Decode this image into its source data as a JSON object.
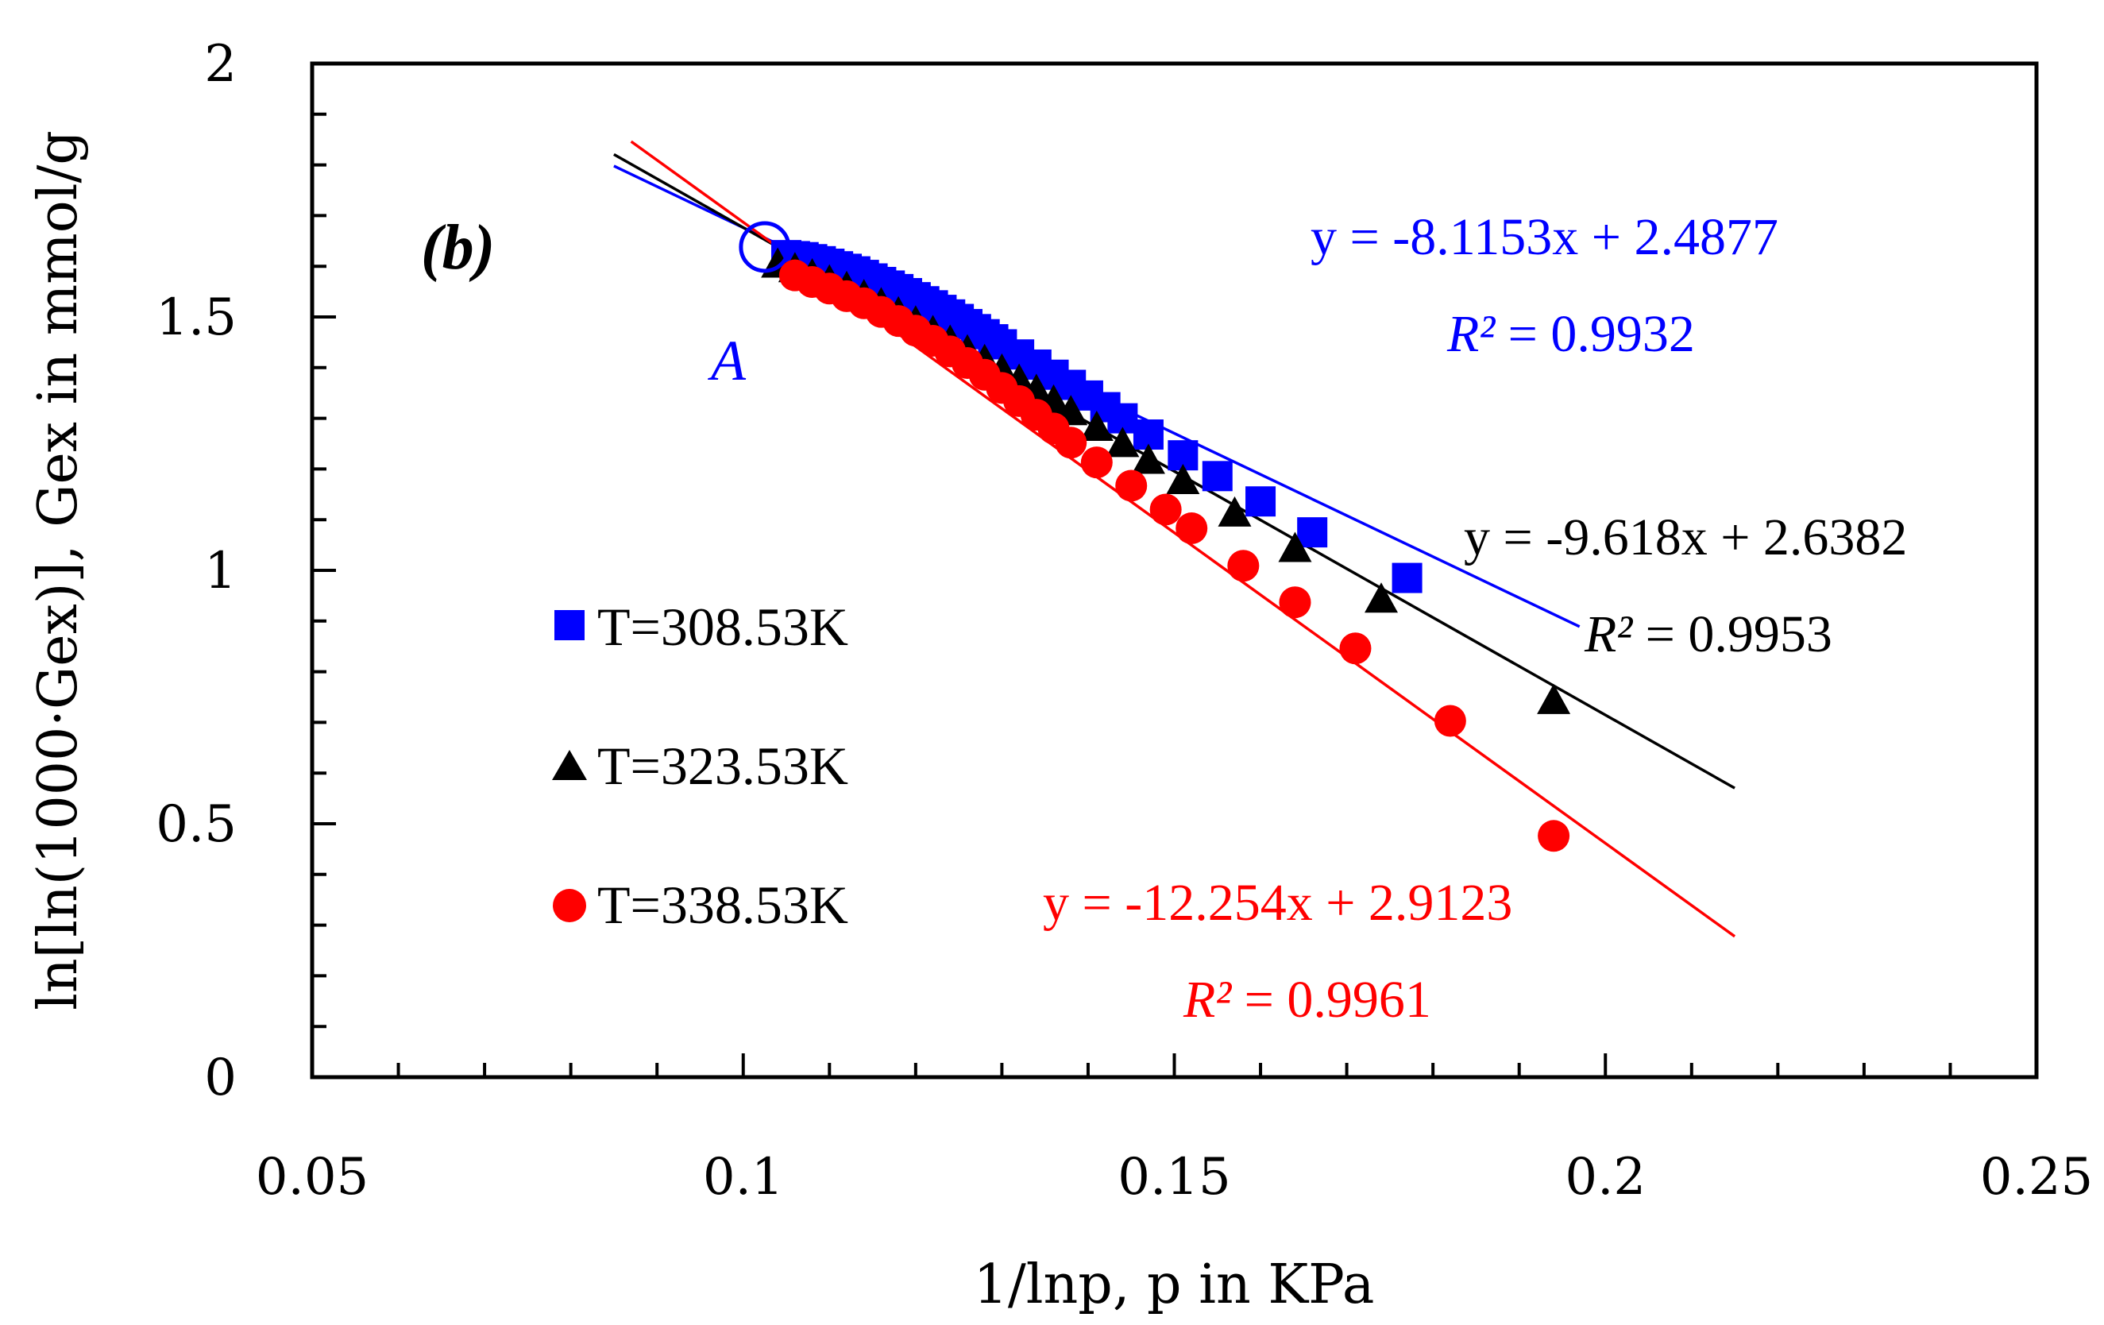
{
  "chart_data": {
    "type": "scatter",
    "panel_label": "(b)",
    "xlabel": "1/lnp, p in KPa",
    "ylabel": "ln[ln(1000·Gex)], Gex in mmol/g",
    "xlim": [
      0.05,
      0.25
    ],
    "ylim": [
      0,
      2
    ],
    "x_ticks": [
      "0.05",
      "0.1",
      "0.15",
      "0.2",
      "0.25"
    ],
    "y_ticks": [
      "0",
      "0.5",
      "1",
      "1.5",
      "2"
    ],
    "x_tick_values": [
      0.05,
      0.1,
      0.15,
      0.2,
      0.25
    ],
    "y_tick_values": [
      0,
      0.5,
      1,
      1.5,
      2
    ],
    "x_minor_step": 0.01,
    "y_minor_step": 0.1,
    "grid": false,
    "legend_position": "left-center",
    "series": [
      {
        "name": "T=308.53K",
        "marker": "square",
        "color": "#0000ff",
        "x": [
          0.105,
          0.106,
          0.107,
          0.108,
          0.109,
          0.11,
          0.111,
          0.112,
          0.113,
          0.114,
          0.115,
          0.116,
          0.117,
          0.118,
          0.119,
          0.12,
          0.121,
          0.122,
          0.123,
          0.124,
          0.125,
          0.126,
          0.127,
          0.128,
          0.129,
          0.13,
          0.132,
          0.134,
          0.136,
          0.138,
          0.14,
          0.142,
          0.144,
          0.147,
          0.151,
          0.155,
          0.16,
          0.166,
          0.177
        ],
        "y": [
          1.622,
          1.62,
          1.618,
          1.614,
          1.61,
          1.605,
          1.6,
          1.595,
          1.59,
          1.583,
          1.576,
          1.569,
          1.562,
          1.555,
          1.547,
          1.539,
          1.531,
          1.523,
          1.514,
          1.505,
          1.496,
          1.486,
          1.476,
          1.466,
          1.456,
          1.446,
          1.426,
          1.406,
          1.386,
          1.366,
          1.345,
          1.322,
          1.3,
          1.268,
          1.227,
          1.186,
          1.136,
          1.075,
          0.985
        ]
      },
      {
        "name": "T=323.53K",
        "marker": "triangle",
        "color": "#000000",
        "x": [
          0.104,
          0.106,
          0.108,
          0.11,
          0.112,
          0.114,
          0.116,
          0.118,
          0.12,
          0.122,
          0.124,
          0.126,
          0.128,
          0.13,
          0.132,
          0.134,
          0.136,
          0.138,
          0.141,
          0.144,
          0.147,
          0.151,
          0.157,
          0.164,
          0.174,
          0.194
        ],
        "y": [
          1.601,
          1.592,
          1.58,
          1.568,
          1.555,
          1.539,
          1.523,
          1.505,
          1.487,
          1.468,
          1.449,
          1.43,
          1.411,
          1.392,
          1.372,
          1.352,
          1.331,
          1.31,
          1.279,
          1.247,
          1.214,
          1.174,
          1.11,
          1.04,
          0.94,
          0.74
        ]
      },
      {
        "name": "T=338.53K",
        "marker": "circle",
        "color": "#ff0000",
        "x": [
          0.106,
          0.108,
          0.11,
          0.112,
          0.114,
          0.116,
          0.118,
          0.12,
          0.122,
          0.124,
          0.126,
          0.128,
          0.13,
          0.132,
          0.134,
          0.136,
          0.138,
          0.141,
          0.145,
          0.149,
          0.152,
          0.158,
          0.164,
          0.171,
          0.182,
          0.194
        ],
        "y": [
          1.582,
          1.569,
          1.556,
          1.541,
          1.527,
          1.51,
          1.492,
          1.473,
          1.453,
          1.432,
          1.409,
          1.386,
          1.36,
          1.334,
          1.307,
          1.28,
          1.252,
          1.213,
          1.167,
          1.12,
          1.083,
          1.009,
          0.937,
          0.846,
          0.703,
          0.476
        ]
      }
    ],
    "fit_lines": [
      {
        "color": "#0000ff",
        "slope": -8.1153,
        "intercept": 2.4877,
        "x_range": [
          0.085,
          0.197
        ]
      },
      {
        "color": "#000000",
        "slope": -9.618,
        "intercept": 2.6382,
        "x_range": [
          0.085,
          0.215
        ]
      },
      {
        "color": "#ff0000",
        "slope": -12.254,
        "intercept": 2.9123,
        "x_range": [
          0.087,
          0.215
        ]
      }
    ],
    "annotations": {
      "point_a": {
        "label": "A",
        "x": 0.1025,
        "y": 1.638,
        "color": "#0000ff"
      },
      "equations": [
        {
          "color": "#0000ff",
          "equation": "y = -8.1153x + 2.4877",
          "r2_label": "R²",
          "r2_value": "= 0.9932"
        },
        {
          "color": "#000000",
          "equation": "y = -9.618x + 2.6382",
          "r2_label": "R²",
          "r2_value": "= 0.9953"
        },
        {
          "color": "#ff0000",
          "equation": "y = -12.254x + 2.9123",
          "r2_label": "R²",
          "r2_value": "= 0.9961"
        }
      ]
    }
  }
}
